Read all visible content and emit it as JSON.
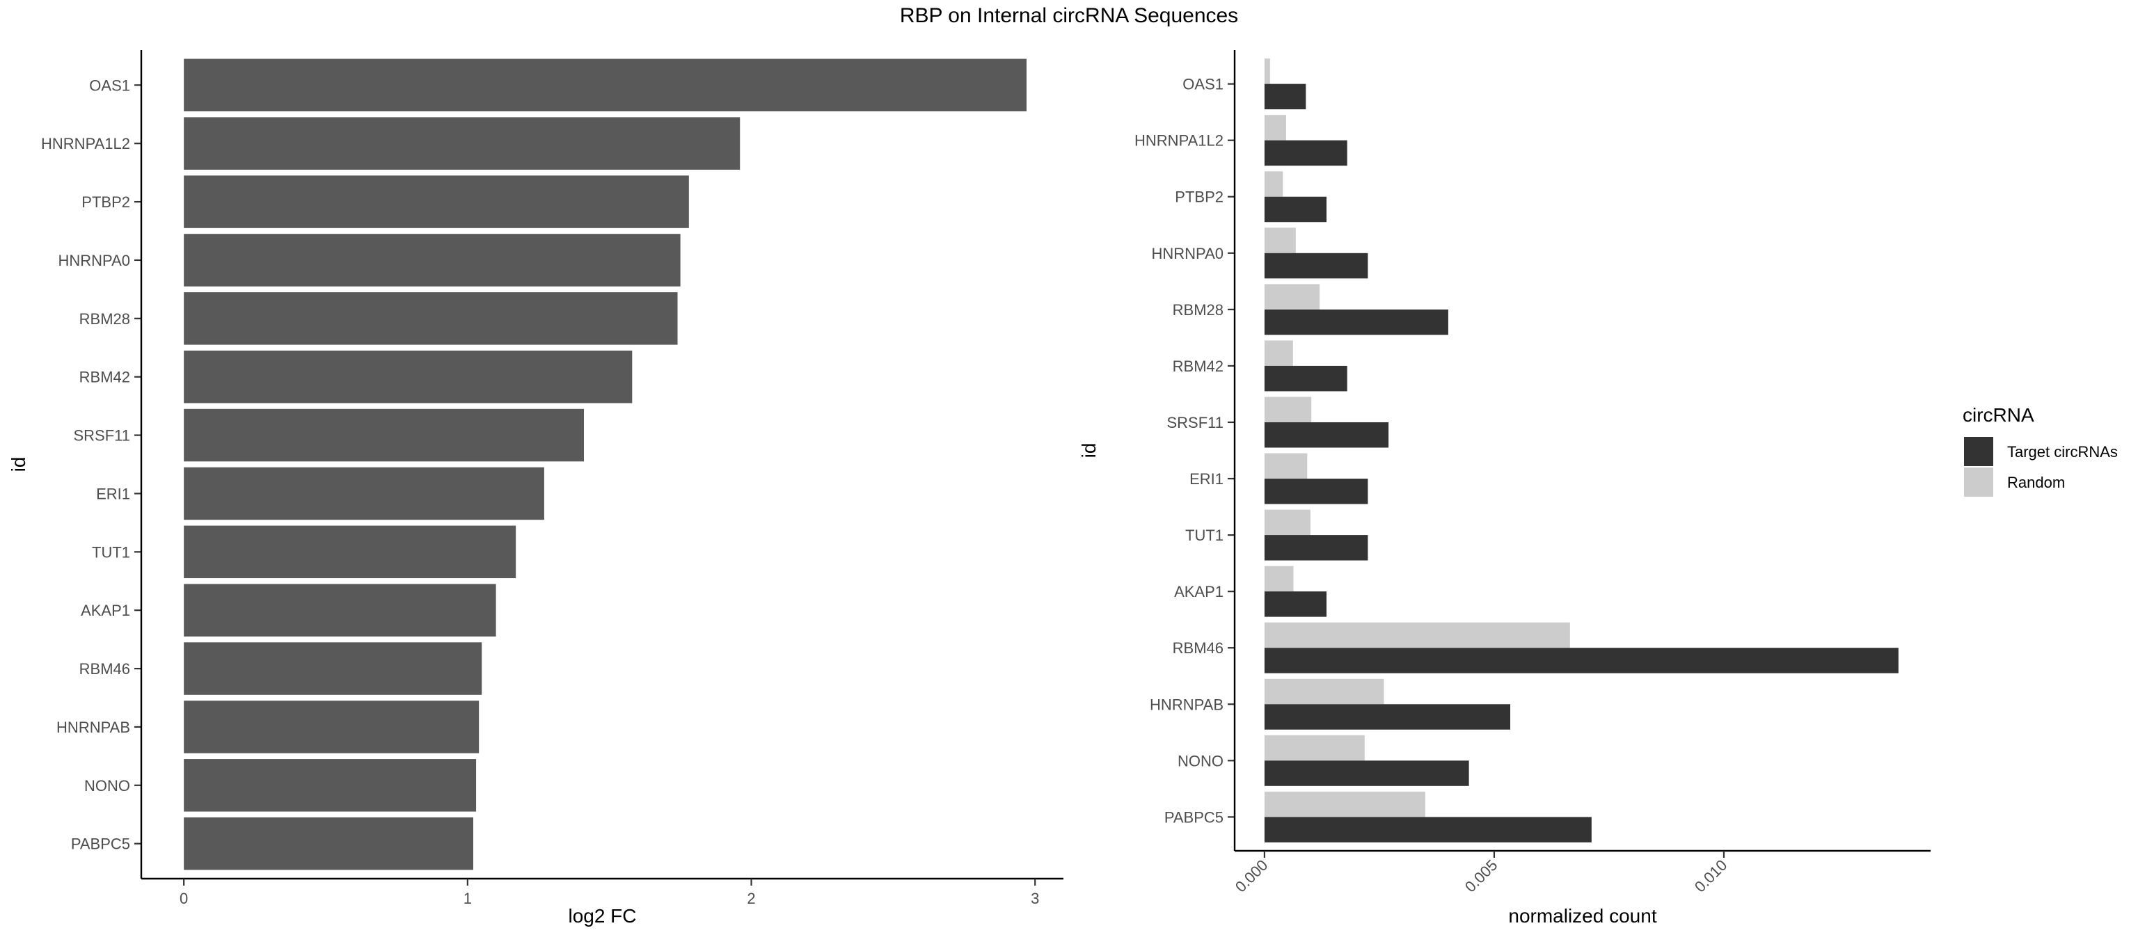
{
  "title": "RBP on Internal circRNA Sequences",
  "chart_data": [
    {
      "type": "bar",
      "orientation": "horizontal",
      "categories": [
        "OAS1",
        "HNRNPA1L2",
        "PTBP2",
        "HNRNPA0",
        "RBM28",
        "RBM42",
        "SRSF11",
        "ERI1",
        "TUT1",
        "AKAP1",
        "RBM46",
        "HNRNPAB",
        "NONO",
        "PABPC5"
      ],
      "values": [
        2.97,
        1.96,
        1.78,
        1.75,
        1.74,
        1.58,
        1.41,
        1.27,
        1.17,
        1.1,
        1.05,
        1.04,
        1.03,
        1.02
      ],
      "xlabel": "log2 FC",
      "ylabel": "id",
      "xlim": [
        -0.15,
        3.1
      ],
      "xticks": [
        0,
        1,
        2,
        3
      ],
      "bar_color": "#595959",
      "grid": false
    },
    {
      "type": "bar",
      "orientation": "horizontal",
      "categories": [
        "OAS1",
        "HNRNPA1L2",
        "PTBP2",
        "HNRNPA0",
        "RBM28",
        "RBM42",
        "SRSF11",
        "ERI1",
        "TUT1",
        "AKAP1",
        "RBM46",
        "HNRNPAB",
        "NONO",
        "PABPC5"
      ],
      "series": [
        {
          "name": "Target circRNAs",
          "color": "#333333",
          "values": [
            0.0009,
            0.0018,
            0.00135,
            0.00225,
            0.004,
            0.0018,
            0.0027,
            0.00225,
            0.00225,
            0.00135,
            0.0138,
            0.00535,
            0.00445,
            0.00712
          ]
        },
        {
          "name": "Random",
          "color": "#cccccc",
          "values": [
            0.00012,
            0.00047,
            0.0004,
            0.00068,
            0.0012,
            0.00062,
            0.00102,
            0.00093,
            0.001,
            0.00063,
            0.00665,
            0.0026,
            0.00218,
            0.0035
          ]
        }
      ],
      "xlabel": "normalized count",
      "ylabel": "id",
      "xlim": [
        -0.00065,
        0.0145
      ],
      "xticks": [
        0.0,
        0.005,
        0.01
      ],
      "xtick_labels": [
        "0.000",
        "0.005",
        "0.010"
      ],
      "legend": {
        "title": "circRNA",
        "position": "right"
      },
      "grid": false
    }
  ]
}
